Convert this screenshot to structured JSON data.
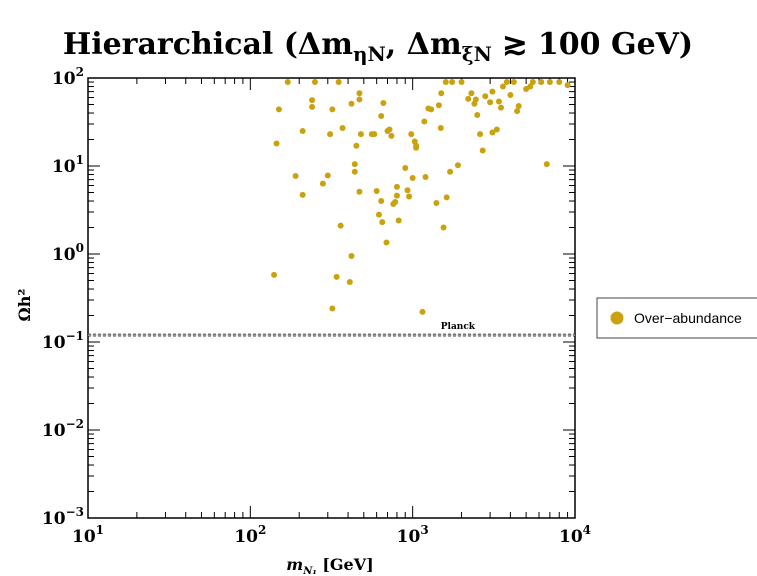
{
  "chart_data": {
    "type": "scatter",
    "title": "Hierarchical (Δm",
    "title_sub1": "ηN",
    "title_mid": ", Δm",
    "title_sub2": "ξN",
    "title_end": " ≳ 100 GeV)",
    "xlabel": "m",
    "xlabel_sub": "N₁",
    "xlabel_unit": " [GeV]",
    "ylabel": "Ωh²",
    "xscale": "log",
    "yscale": "log",
    "xlim": [
      10,
      10000
    ],
    "ylim": [
      0.001,
      100
    ],
    "x_ticks": [
      {
        "base": "10",
        "exp": "1",
        "value": 10
      },
      {
        "base": "10",
        "exp": "2",
        "value": 100
      },
      {
        "base": "10",
        "exp": "3",
        "value": 1000
      },
      {
        "base": "10",
        "exp": "4",
        "value": 10000
      }
    ],
    "y_ticks": [
      {
        "base": "10",
        "exp": "−3",
        "value": 0.001
      },
      {
        "base": "10",
        "exp": "−2",
        "value": 0.01
      },
      {
        "base": "10",
        "exp": "−1",
        "value": 0.1
      },
      {
        "base": "10",
        "exp": "0",
        "value": 1
      },
      {
        "base": "10",
        "exp": "1",
        "value": 10
      },
      {
        "base": "10",
        "exp": "2",
        "value": 100
      }
    ],
    "grid": false,
    "legend_position": "right",
    "reference_band": {
      "label": "Planck",
      "y_low": 0.117,
      "y_high": 0.123
    },
    "series": [
      {
        "name": "Over−abundance",
        "color": "#c9a20e",
        "points": [
          [
            170,
            90
          ],
          [
            250,
            90
          ],
          [
            1750,
            90
          ],
          [
            150,
            44
          ],
          [
            145,
            18
          ],
          [
            210,
            25
          ],
          [
            240,
            47
          ],
          [
            240,
            56
          ],
          [
            280,
            6.3
          ],
          [
            310,
            23
          ],
          [
            320,
            44
          ],
          [
            350,
            90
          ],
          [
            370,
            27
          ],
          [
            420,
            51
          ],
          [
            450,
            17
          ],
          [
            470,
            67
          ],
          [
            470,
            57
          ],
          [
            480,
            23
          ],
          [
            560,
            23
          ],
          [
            580,
            23
          ],
          [
            640,
            37
          ],
          [
            660,
            52
          ],
          [
            700,
            25
          ],
          [
            720,
            26
          ],
          [
            740,
            22
          ],
          [
            980,
            23
          ],
          [
            1030,
            19
          ],
          [
            1050,
            17
          ],
          [
            1180,
            32
          ],
          [
            1250,
            45
          ],
          [
            1300,
            44
          ],
          [
            1450,
            49
          ],
          [
            1490,
            27
          ],
          [
            1500,
            67
          ],
          [
            1600,
            90
          ],
          [
            2000,
            90
          ],
          [
            2200,
            58
          ],
          [
            2300,
            67
          ],
          [
            2400,
            51
          ],
          [
            2450,
            57
          ],
          [
            2500,
            38
          ],
          [
            2600,
            23
          ],
          [
            2800,
            62
          ],
          [
            3000,
            53
          ],
          [
            3100,
            70
          ],
          [
            3300,
            26
          ],
          [
            3400,
            54
          ],
          [
            3500,
            46
          ],
          [
            3600,
            80
          ],
          [
            3800,
            90
          ],
          [
            4000,
            64
          ],
          [
            4200,
            90
          ],
          [
            4500,
            48
          ],
          [
            5000,
            75
          ],
          [
            5300,
            80
          ],
          [
            5500,
            90
          ],
          [
            6200,
            90
          ],
          [
            7000,
            90
          ],
          [
            8000,
            90
          ],
          [
            9000,
            83
          ],
          [
            6700,
            10.5
          ],
          [
            4400,
            42
          ],
          [
            2700,
            15
          ],
          [
            3100,
            24
          ],
          [
            1700,
            8.6
          ],
          [
            1900,
            10.2
          ],
          [
            190,
            7.7
          ],
          [
            210,
            4.7
          ],
          [
            360,
            2.1
          ],
          [
            300,
            7.8
          ],
          [
            340,
            0.55
          ],
          [
            420,
            0.95
          ],
          [
            440,
            8.6
          ],
          [
            440,
            10.5
          ],
          [
            470,
            5.1
          ],
          [
            600,
            5.2
          ],
          [
            620,
            2.8
          ],
          [
            640,
            4.0
          ],
          [
            650,
            2.3
          ],
          [
            690,
            1.35
          ],
          [
            760,
            3.7
          ],
          [
            780,
            3.9
          ],
          [
            800,
            4.6
          ],
          [
            800,
            5.8
          ],
          [
            820,
            2.4
          ],
          [
            900,
            9.5
          ],
          [
            930,
            5.3
          ],
          [
            950,
            4.5
          ],
          [
            1000,
            7.3
          ],
          [
            1050,
            16.1
          ],
          [
            1200,
            7.5
          ],
          [
            1400,
            3.8
          ],
          [
            1550,
            2.0
          ],
          [
            1620,
            4.4
          ],
          [
            140,
            0.58
          ],
          [
            320,
            0.24
          ],
          [
            410,
            0.48
          ],
          [
            1150,
            0.22
          ]
        ]
      }
    ]
  }
}
